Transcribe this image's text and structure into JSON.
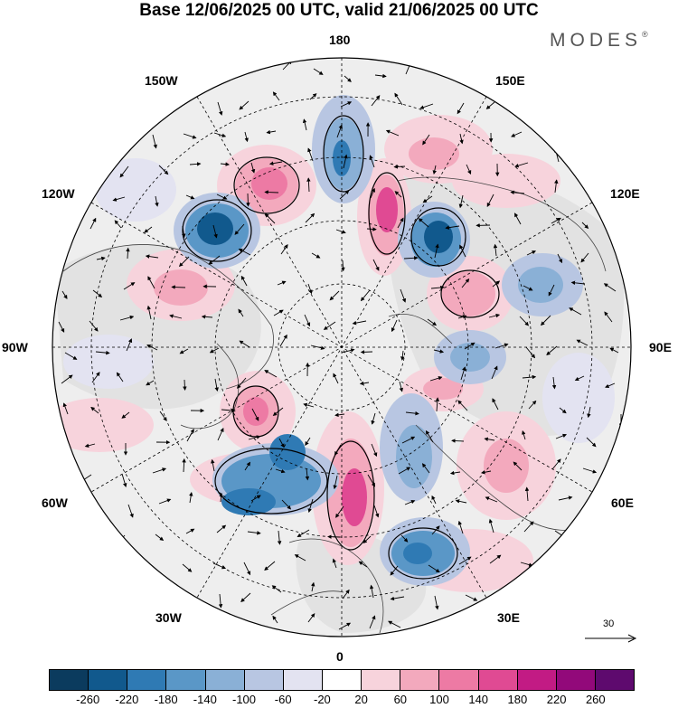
{
  "title": "Base 12/06/2025 00 UTC, valid 21/06/2025 00 UTC",
  "brand": "MODES",
  "brand_mark": "®",
  "longitudes": [
    "180",
    "150E",
    "120E",
    "90E",
    "60E",
    "30E",
    "0",
    "30W",
    "60W",
    "90W",
    "120W",
    "150W"
  ],
  "reference_vector": {
    "value": "30",
    "icon": "arrow-right-icon"
  },
  "colorbar": {
    "labels": [
      "-260",
      "-220",
      "-180",
      "-140",
      "-100",
      "-60",
      "-20",
      "20",
      "60",
      "100",
      "140",
      "180",
      "220",
      "260"
    ],
    "colors": [
      "#0b3b5e",
      "#11598d",
      "#2f7ab4",
      "#5a97c7",
      "#8ab0d6",
      "#b8c6e2",
      "#e3e3f1",
      "#ffffff",
      "#f7d3dc",
      "#f3a9bd",
      "#ed7aa4",
      "#e04a93",
      "#c21b84",
      "#92097a",
      "#5e0a6e"
    ]
  }
}
